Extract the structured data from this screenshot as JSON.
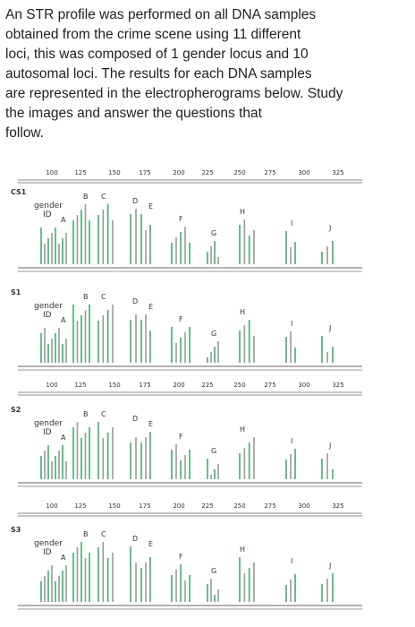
{
  "paragraph": [
    "An STR profile was performed on all DNA samples",
    "obtained from the crime scene using 11 different",
    "loci, this was composed of 1 gender locus and 10",
    "autosomal loci. The results for each DNA samples",
    "are represented in the electropherograms below. Study",
    "the images and answer the questions that",
    "follow."
  ],
  "figure": {
    "scale_ticks": [
      "100",
      "125",
      "150",
      "175",
      "200",
      "225",
      "250",
      "275",
      "300",
      "325"
    ],
    "gender_label": "gender",
    "id_label": "ID",
    "locus_labels": [
      "A",
      "B",
      "C",
      "D",
      "E",
      "F",
      "G",
      "H",
      "I",
      "J"
    ],
    "panels": [
      {
        "label": "CS1"
      },
      {
        "label": "S1"
      },
      {
        "label": "S2"
      },
      {
        "label": "S3"
      }
    ]
  }
}
